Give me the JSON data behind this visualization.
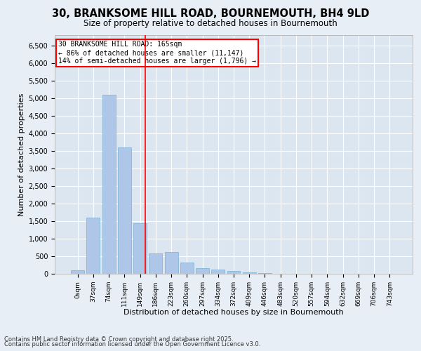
{
  "title1": "30, BRANKSOME HILL ROAD, BOURNEMOUTH, BH4 9LD",
  "title2": "Size of property relative to detached houses in Bournemouth",
  "xlabel": "Distribution of detached houses by size in Bournemouth",
  "ylabel": "Number of detached properties",
  "categories": [
    "0sqm",
    "37sqm",
    "74sqm",
    "111sqm",
    "149sqm",
    "186sqm",
    "223sqm",
    "260sqm",
    "297sqm",
    "334sqm",
    "372sqm",
    "409sqm",
    "446sqm",
    "483sqm",
    "520sqm",
    "557sqm",
    "594sqm",
    "632sqm",
    "669sqm",
    "706sqm",
    "743sqm"
  ],
  "values": [
    100,
    1600,
    5100,
    3600,
    1450,
    580,
    630,
    320,
    160,
    120,
    75,
    50,
    30,
    10,
    5,
    3,
    2,
    1,
    1,
    1,
    1
  ],
  "bar_color": "#aec6e8",
  "bar_edge_color": "#7aafd4",
  "red_line_x": 4.32,
  "annotation_text": "30 BRANKSOME HILL ROAD: 165sqm\n← 86% of detached houses are smaller (11,147)\n14% of semi-detached houses are larger (1,796) →",
  "ylim": [
    0,
    6800
  ],
  "yticks": [
    0,
    500,
    1000,
    1500,
    2000,
    2500,
    3000,
    3500,
    4000,
    4500,
    5000,
    5500,
    6000,
    6500
  ],
  "bg_color": "#dce6f0",
  "fig_bg_color": "#e8eef5",
  "footer1": "Contains HM Land Registry data © Crown copyright and database right 2025.",
  "footer2": "Contains public sector information licensed under the Open Government Licence v3.0."
}
